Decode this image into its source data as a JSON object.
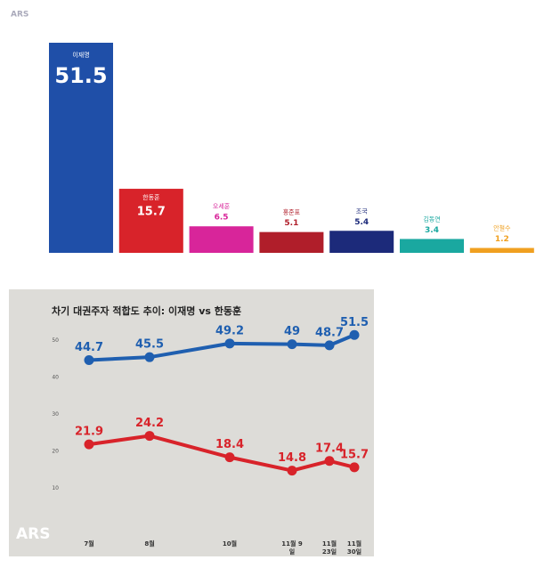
{
  "source_top": "ARS",
  "chart_data": [
    {
      "type": "bar",
      "categories": [
        "이재명",
        "한동훈",
        "오세훈",
        "홍준표",
        "조국",
        "김동연",
        "안철수"
      ],
      "values": [
        51.5,
        15.7,
        6.5,
        5.1,
        5.4,
        3.4,
        1.2
      ],
      "colors": [
        "#1f4fa8",
        "#d8232a",
        "#d8259a",
        "#b01e2a",
        "#1c2a7a",
        "#1aa8a0",
        "#f0a020"
      ]
    },
    {
      "type": "line",
      "title": "차기 대권주자 적합도 추이: 이재명 vs 한동훈",
      "source": "ARS",
      "categories": [
        "7월",
        "8월",
        "10월",
        "11월 9일",
        "11월 23일",
        "11월 30일"
      ],
      "ylim": [
        0,
        60
      ],
      "yticks": [
        10,
        20,
        30,
        40,
        50
      ],
      "series": [
        {
          "name": "이재명",
          "color": "#1f5fb0",
          "values": [
            44.7,
            45.5,
            49.2,
            49.0,
            48.7,
            51.5
          ]
        },
        {
          "name": "한동훈",
          "color": "#d8232a",
          "values": [
            21.9,
            24.2,
            18.4,
            14.8,
            17.4,
            15.7
          ]
        }
      ]
    }
  ]
}
